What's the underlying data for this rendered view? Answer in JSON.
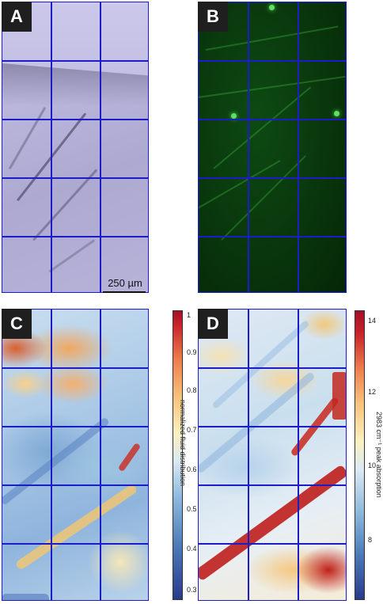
{
  "panels": {
    "a": {
      "label": "A"
    },
    "b": {
      "label": "B"
    },
    "c": {
      "label": "C"
    },
    "d": {
      "label": "D"
    }
  },
  "scale_bar": {
    "label": "250 µm"
  },
  "colorbar_c": {
    "label": "normalized fluid distribution",
    "ticks": [
      "1",
      "0.9",
      "0.8",
      "0.7",
      "0.6",
      "0.5",
      "0.4",
      "0.3"
    ]
  },
  "colorbar_d": {
    "label": "2983 cm⁻¹ peak absorption",
    "ticks": [
      "14",
      "12",
      "10",
      "8"
    ]
  },
  "colors": {
    "grid": "#1c1cc8",
    "label_bg": "#1f1f1f"
  }
}
